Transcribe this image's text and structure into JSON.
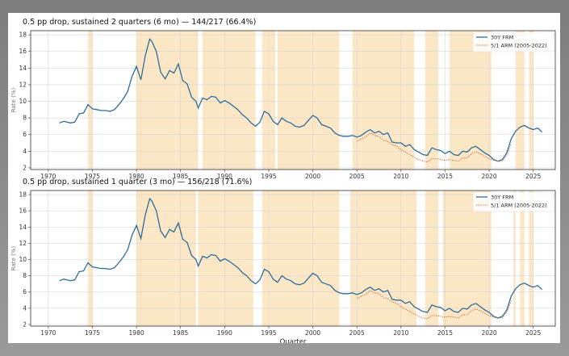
{
  "chart_data": [
    {
      "type": "line",
      "title": "0.5 pp drop, sustained 2 quarters (6 mo)  —  144/217 (66.4%)",
      "xlabel": "",
      "ylabel": "Rate (%)",
      "xlim": [
        1968,
        2027.5
      ],
      "ylim": [
        1.8,
        18.5
      ],
      "x_ticks": [
        "1970",
        "1975",
        "1980",
        "1985",
        "1990",
        "1995",
        "2000",
        "2005",
        "2010",
        "2015",
        "2020",
        "2025"
      ],
      "y_ticks": [
        "2",
        "4",
        "6",
        "8",
        "10",
        "12",
        "14",
        "16",
        "18"
      ],
      "grid": true,
      "legend": "top-right",
      "shaded_periods": [
        [
          1974.5,
          1975.0
        ],
        [
          1980.0,
          1980.75
        ],
        [
          1980.75,
          1987.0
        ],
        [
          1987.5,
          1993.5
        ],
        [
          1994.25,
          1995.75
        ],
        [
          1996.0,
          2003.0
        ],
        [
          2004.5,
          2011.5
        ],
        [
          2012.75,
          2014.25
        ],
        [
          2015.5,
          2020.25
        ],
        [
          2023.0,
          2024.0
        ],
        [
          2024.5,
          2025.0
        ]
      ],
      "series": [
        {
          "name": "30Y FRM",
          "color": "#2f6d99",
          "style": "solid",
          "x": [
            1971.25,
            1971.75,
            1972.5,
            1973.0,
            1973.5,
            1974.0,
            1974.5,
            1975.0,
            1975.5,
            1976.0,
            1976.5,
            1977.0,
            1977.5,
            1978.0,
            1978.5,
            1979.0,
            1979.5,
            1980.0,
            1980.5,
            1981.0,
            1981.5,
            1981.75,
            1982.25,
            1982.75,
            1983.25,
            1983.75,
            1984.25,
            1984.75,
            1985.25,
            1985.75,
            1986.25,
            1986.75,
            1987.0,
            1987.5,
            1988.0,
            1988.5,
            1989.0,
            1989.5,
            1990.0,
            1990.5,
            1991.0,
            1991.5,
            1992.0,
            1992.5,
            1993.0,
            1993.5,
            1994.0,
            1994.5,
            1995.0,
            1995.5,
            1996.0,
            1996.5,
            1997.0,
            1997.5,
            1998.0,
            1998.5,
            1999.0,
            1999.5,
            2000.0,
            2000.5,
            2001.0,
            2001.5,
            2002.0,
            2002.5,
            2003.0,
            2003.5,
            2004.0,
            2004.5,
            2005.0,
            2005.5,
            2006.0,
            2006.5,
            2007.0,
            2007.5,
            2008.0,
            2008.5,
            2009.0,
            2009.5,
            2010.0,
            2010.5,
            2011.0,
            2011.5,
            2012.0,
            2012.5,
            2013.0,
            2013.5,
            2014.0,
            2014.5,
            2015.0,
            2015.5,
            2016.0,
            2016.5,
            2017.0,
            2017.5,
            2018.0,
            2018.5,
            2019.0,
            2019.5,
            2020.0,
            2020.5,
            2021.0,
            2021.5,
            2022.0,
            2022.5,
            2023.0,
            2023.5,
            2024.0,
            2024.5,
            2025.0,
            2025.5,
            2026.0
          ],
          "y": [
            7.4,
            7.6,
            7.4,
            7.5,
            8.5,
            8.6,
            9.6,
            9.1,
            9.0,
            8.9,
            8.9,
            8.8,
            9.0,
            9.6,
            10.3,
            11.2,
            13.0,
            14.2,
            12.6,
            15.5,
            17.5,
            17.2,
            16.0,
            13.5,
            12.7,
            13.7,
            13.4,
            14.5,
            12.5,
            12.1,
            10.5,
            10.0,
            9.2,
            10.4,
            10.2,
            10.6,
            10.5,
            9.8,
            10.1,
            9.8,
            9.4,
            9.0,
            8.4,
            8.0,
            7.4,
            7.0,
            7.5,
            8.8,
            8.5,
            7.6,
            7.2,
            8.0,
            7.6,
            7.4,
            7.0,
            6.9,
            7.1,
            7.7,
            8.3,
            8.0,
            7.2,
            7.0,
            6.8,
            6.2,
            5.9,
            5.8,
            5.8,
            5.9,
            5.7,
            5.9,
            6.3,
            6.6,
            6.2,
            6.4,
            6.0,
            6.2,
            5.1,
            5.0,
            5.0,
            4.6,
            4.8,
            4.2,
            3.9,
            3.6,
            3.5,
            4.4,
            4.2,
            4.1,
            3.7,
            4.0,
            3.6,
            3.5,
            4.0,
            3.9,
            4.4,
            4.6,
            4.2,
            3.8,
            3.5,
            3.0,
            2.8,
            3.0,
            3.8,
            5.5,
            6.4,
            6.9,
            7.1,
            6.8,
            6.6,
            6.8,
            6.3
          ]
        },
        {
          "name": "5/1 ARM (2005-2022)",
          "color": "#c8602a",
          "style": "dotted",
          "x": [
            2005.0,
            2005.5,
            2006.0,
            2006.5,
            2007.0,
            2007.5,
            2008.0,
            2008.5,
            2009.0,
            2009.5,
            2010.0,
            2010.5,
            2011.0,
            2011.5,
            2012.0,
            2012.5,
            2013.0,
            2013.5,
            2014.0,
            2014.5,
            2015.0,
            2015.5,
            2016.0,
            2016.5,
            2017.0,
            2017.5,
            2018.0,
            2018.5,
            2019.0,
            2019.5,
            2020.0,
            2020.5,
            2021.0,
            2021.5,
            2022.0,
            2022.5
          ],
          "y": [
            5.2,
            5.5,
            5.7,
            6.2,
            5.9,
            5.8,
            5.3,
            5.2,
            4.8,
            4.6,
            4.2,
            3.9,
            3.6,
            3.3,
            3.0,
            2.8,
            2.7,
            3.1,
            3.1,
            3.0,
            2.9,
            3.0,
            2.9,
            2.8,
            3.2,
            3.2,
            3.7,
            3.9,
            3.7,
            3.4,
            3.1,
            2.9,
            2.8,
            2.8,
            3.5,
            4.9
          ]
        }
      ]
    },
    {
      "type": "line",
      "title": "0.5 pp drop, sustained 1 quarter (3 mo)  —  156/218 (71.6%)",
      "xlabel": "Quarter",
      "ylabel": "Rate (%)",
      "xlim": [
        1968,
        2027.5
      ],
      "ylim": [
        1.8,
        18.5
      ],
      "x_ticks": [
        "1970",
        "1975",
        "1980",
        "1985",
        "1990",
        "1995",
        "2000",
        "2005",
        "2010",
        "2015",
        "2020",
        "2025"
      ],
      "y_ticks": [
        "2",
        "4",
        "6",
        "8",
        "10",
        "12",
        "14",
        "16",
        "18"
      ],
      "grid": true,
      "legend": "top-right",
      "shaded_periods": [
        [
          1974.5,
          1975.0
        ],
        [
          1980.0,
          1986.75
        ],
        [
          1987.0,
          1993.25
        ],
        [
          1994.25,
          2003.0
        ],
        [
          2004.25,
          2011.75
        ],
        [
          2012.75,
          2014.25
        ],
        [
          2014.75,
          2020.25
        ],
        [
          2022.75,
          2023.0
        ],
        [
          2023.5,
          2024.0
        ],
        [
          2024.5,
          2025.0
        ]
      ],
      "series": [
        {
          "name": "30Y FRM",
          "color": "#2f6d99",
          "style": "solid",
          "ref": 0
        },
        {
          "name": "5/1 ARM (2005-2022)",
          "color": "#c8602a",
          "style": "dotted",
          "ref": 1
        }
      ]
    }
  ]
}
